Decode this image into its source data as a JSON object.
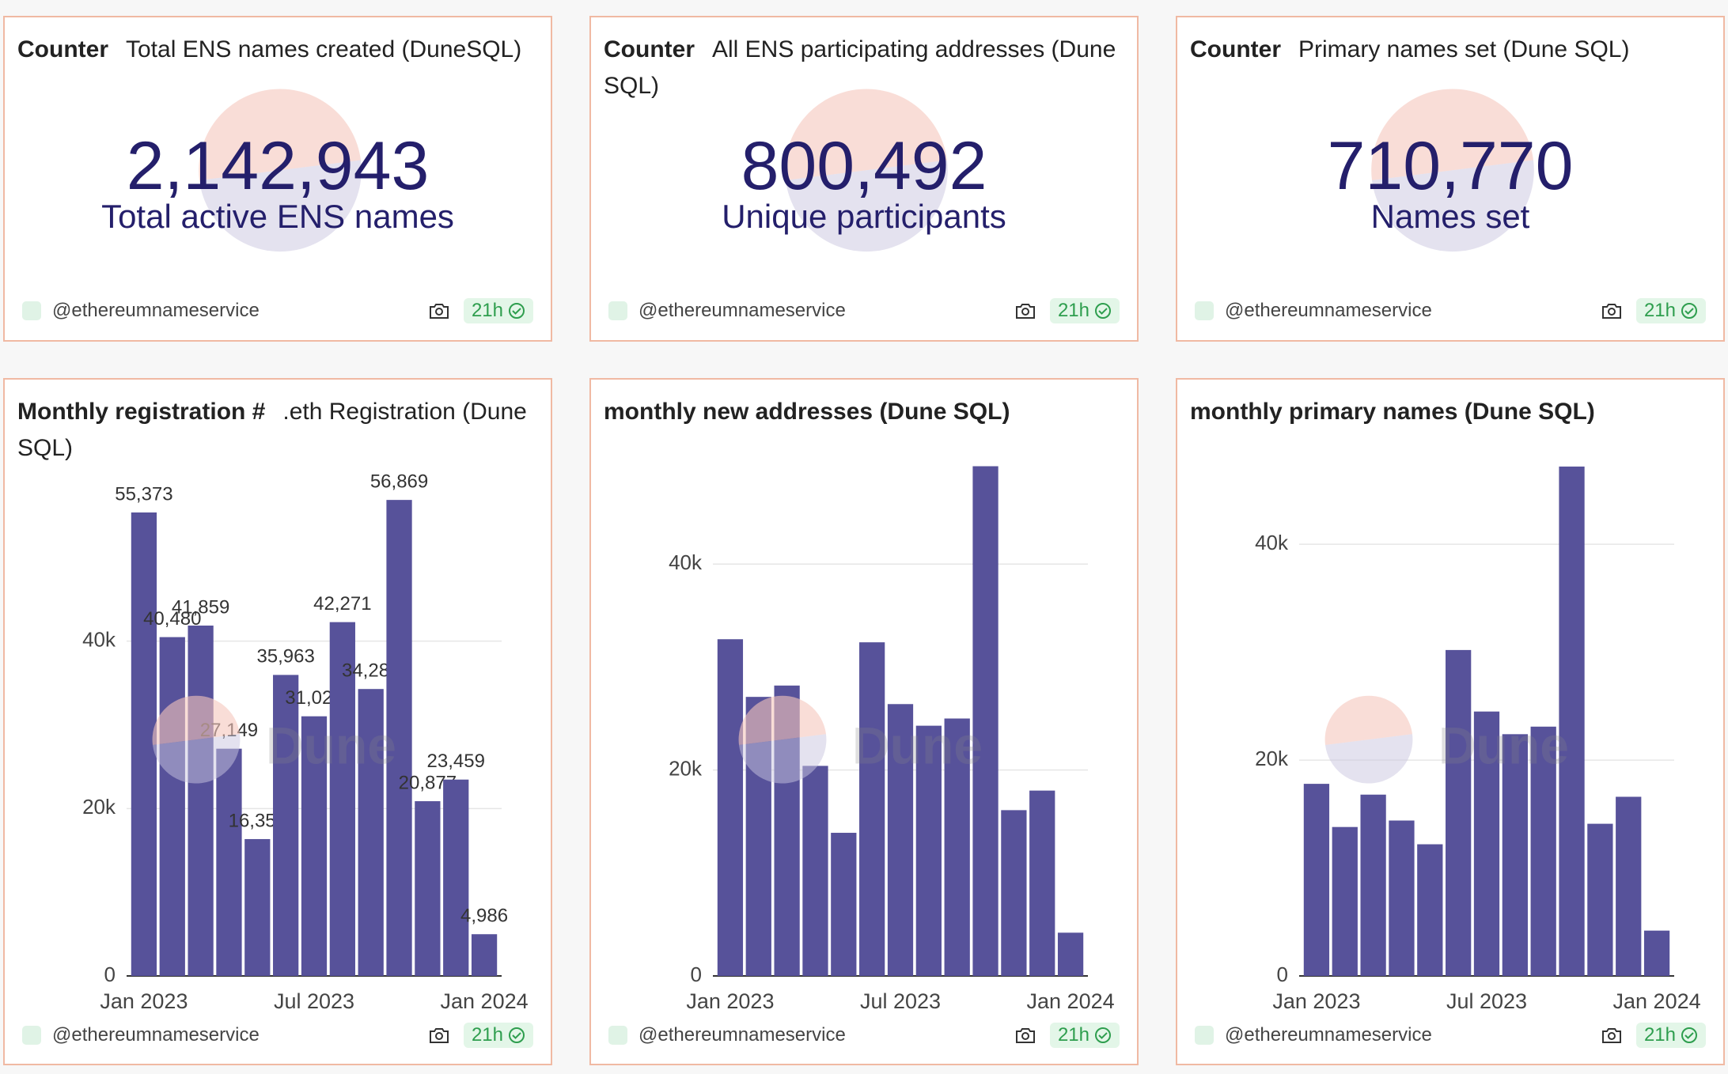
{
  "counters": [
    {
      "label": "Counter",
      "title": "Total ENS names created (DuneSQL)",
      "value": "2,142,943",
      "caption": "Total active ENS names",
      "author": "@ethereumnameservice",
      "age": "21h"
    },
    {
      "label": "Counter",
      "title": "All ENS participating addresses (Dune SQL)",
      "value": "800,492",
      "caption": "Unique participants",
      "author": "@ethereumnameservice",
      "age": "21h"
    },
    {
      "label": "Counter",
      "title": "Primary names set (Dune SQL)",
      "value": "710,770",
      "caption": "Names set",
      "author": "@ethereumnameservice",
      "age": "21h"
    }
  ],
  "chart_data": [
    {
      "type": "bar",
      "title": "Monthly registration #",
      "subtitle": ".eth Registration (Dune SQL)",
      "categories": [
        "Jan 2023",
        null,
        null,
        null,
        null,
        null,
        "Jul 2023",
        null,
        null,
        null,
        null,
        null,
        "Jan 2024"
      ],
      "values": [
        55373,
        40480,
        41859,
        27149,
        16350,
        35963,
        31020,
        42271,
        34280,
        56869,
        20877,
        23459,
        4986
      ],
      "color": "#57529a",
      "ylim": [
        0,
        60000
      ],
      "yticks": [
        0,
        {
          "value": 20000,
          "label": "20k"
        },
        {
          "value": 40000,
          "label": "40k"
        }
      ],
      "grid": true,
      "data_labels": true,
      "author": "@ethereumnameservice",
      "age": "21h"
    },
    {
      "type": "bar",
      "title": "monthly new addresses (Dune SQL)",
      "categories": [
        "Jan 2023",
        null,
        null,
        null,
        null,
        null,
        "Jul 2023",
        null,
        null,
        null,
        null,
        null,
        "Jan 2024"
      ],
      "values": [
        32700,
        27100,
        28200,
        20400,
        13900,
        32400,
        26400,
        24300,
        25000,
        49500,
        16100,
        18000,
        4200
      ],
      "color": "#57529a",
      "ylim": [
        0,
        50000
      ],
      "yticks": [
        0,
        {
          "value": 20000,
          "label": "20k"
        },
        {
          "value": 40000,
          "label": "40k"
        }
      ],
      "grid": true,
      "data_labels": false,
      "author": "@ethereumnameservice",
      "age": "21h"
    },
    {
      "type": "bar",
      "title": "monthly primary names (Dune SQL)",
      "categories": [
        "Jan 2023",
        null,
        null,
        null,
        null,
        null,
        "Jul 2023",
        null,
        null,
        null,
        null,
        null,
        "Jan 2024"
      ],
      "values": [
        17800,
        13800,
        16800,
        14400,
        12200,
        30200,
        24500,
        22400,
        23100,
        47200,
        14100,
        16600,
        4200
      ],
      "color": "#57529a",
      "ylim": [
        0,
        48000
      ],
      "yticks": [
        0,
        {
          "value": 20000,
          "label": "20k"
        },
        {
          "value": 40000,
          "label": "40k"
        }
      ],
      "grid": true,
      "data_labels": false,
      "author": "@ethereumnameservice",
      "age": "21h"
    }
  ],
  "watermark": "Dune"
}
